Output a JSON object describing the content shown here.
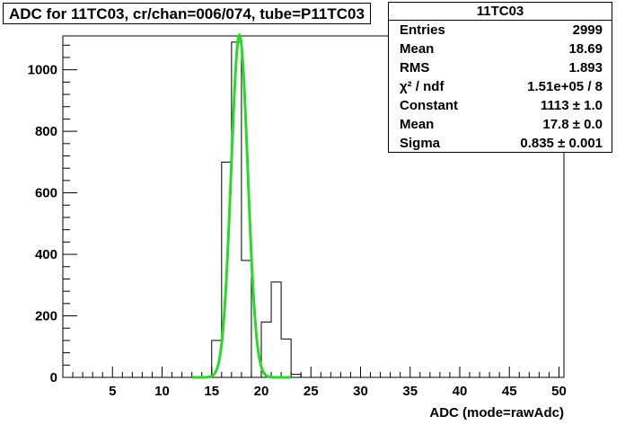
{
  "title": "ADC for 11TC03,  cr/chan=006/074,  tube=P11TC03",
  "stats": {
    "name": "11TC03",
    "rows": [
      {
        "label": "Entries",
        "value": "2999"
      },
      {
        "label": "Mean",
        "value": "18.69"
      },
      {
        "label": "RMS",
        "value": "1.893"
      },
      {
        "label": "χ² / ndf",
        "value": "1.51e+05 / 8"
      },
      {
        "label": "Constant",
        "value": "1113 ± 1.0"
      },
      {
        "label": "Mean",
        "value": "17.8 ± 0.0"
      },
      {
        "label": "Sigma",
        "value": "0.835 ± 0.001"
      }
    ]
  },
  "chart_data": {
    "type": "bar",
    "xlabel": "ADC (mode=rawAdc)",
    "ylabel": "",
    "xlim": [
      0,
      50.5
    ],
    "ylim": [
      0,
      1110
    ],
    "x_ticks": [
      5,
      10,
      15,
      20,
      25,
      30,
      35,
      40,
      45,
      50
    ],
    "y_ticks": [
      0,
      200,
      400,
      600,
      800,
      1000
    ],
    "histogram": {
      "bin_width": 1,
      "bins": [
        {
          "x": 14,
          "y": 0
        },
        {
          "x": 15,
          "y": 120
        },
        {
          "x": 16,
          "y": 700
        },
        {
          "x": 17,
          "y": 1090
        },
        {
          "x": 18,
          "y": 380
        },
        {
          "x": 19,
          "y": 0
        },
        {
          "x": 20,
          "y": 180
        },
        {
          "x": 21,
          "y": 310
        },
        {
          "x": 22,
          "y": 125
        },
        {
          "x": 23,
          "y": 10
        },
        {
          "x": 24,
          "y": 0
        }
      ]
    },
    "fit": {
      "function": "gaus",
      "constant": 1113,
      "mean": 17.8,
      "sigma": 0.835,
      "range": [
        13,
        23
      ],
      "color": "#22dd22"
    },
    "line_color": "#000000"
  }
}
